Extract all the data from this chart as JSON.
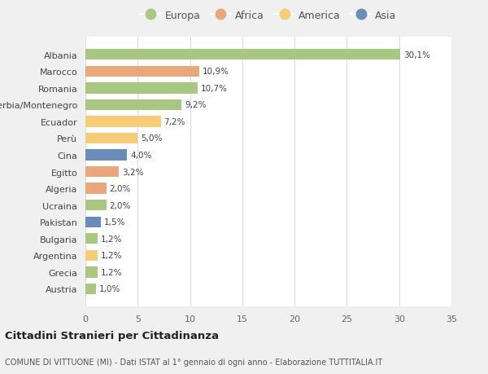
{
  "countries": [
    "Albania",
    "Marocco",
    "Romania",
    "Serbia/Montenegro",
    "Ecuador",
    "Perù",
    "Cina",
    "Egitto",
    "Algeria",
    "Ucraina",
    "Pakistan",
    "Bulgaria",
    "Argentina",
    "Grecia",
    "Austria"
  ],
  "values": [
    30.1,
    10.9,
    10.7,
    9.2,
    7.2,
    5.0,
    4.0,
    3.2,
    2.0,
    2.0,
    1.5,
    1.2,
    1.2,
    1.2,
    1.0
  ],
  "continents": [
    "Europa",
    "Africa",
    "Europa",
    "Europa",
    "America",
    "America",
    "Asia",
    "Africa",
    "Africa",
    "Europa",
    "Asia",
    "Europa",
    "America",
    "Europa",
    "Europa"
  ],
  "colors": {
    "Europa": "#a8c882",
    "Africa": "#e8a87c",
    "America": "#f5cc7a",
    "Asia": "#6b8cba"
  },
  "legend_order": [
    "Europa",
    "Africa",
    "America",
    "Asia"
  ],
  "title": "Cittadini Stranieri per Cittadinanza",
  "subtitle": "COMUNE DI VITTUONE (MI) - Dati ISTAT al 1° gennaio di ogni anno - Elaborazione TUTTITALIA.IT",
  "xlim": [
    0,
    35
  ],
  "xticks": [
    0,
    5,
    10,
    15,
    20,
    25,
    30,
    35
  ],
  "background_color": "#f0f0f0",
  "plot_bg_color": "#ffffff",
  "grid_color": "#dddddd"
}
